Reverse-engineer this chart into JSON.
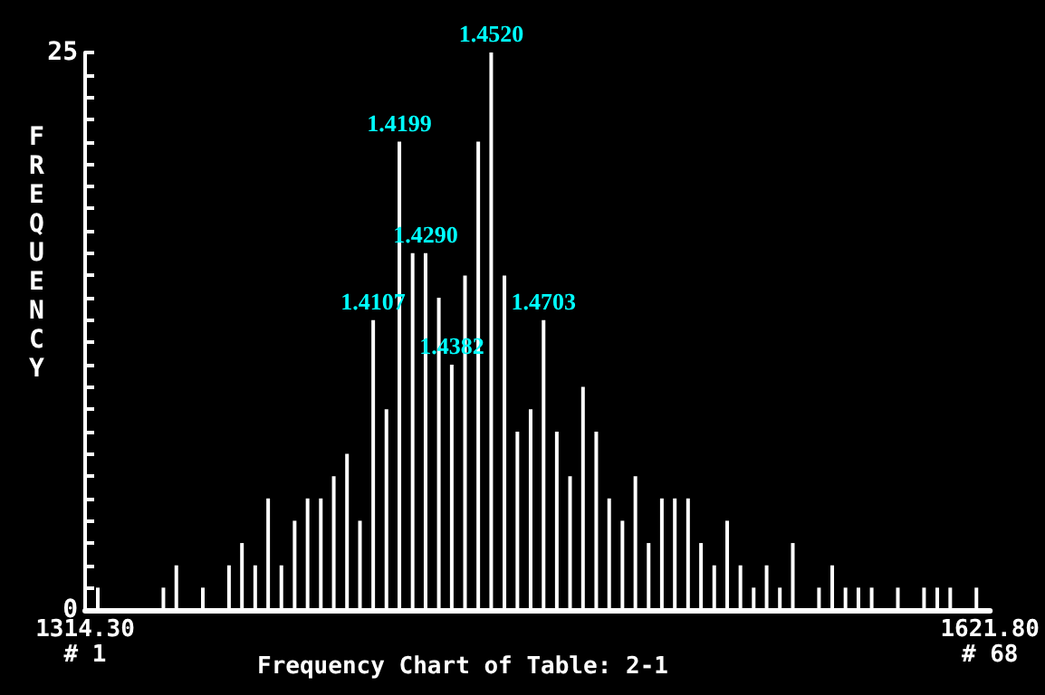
{
  "chart_data": {
    "type": "bar",
    "title": "Frequency Chart of Table: 2-1",
    "ylabel": "FREQUENCY",
    "x": [
      1318.6,
      1340.9,
      1345.3,
      1354.3,
      1363.2,
      1367.6,
      1372.1,
      1376.5,
      1381.0,
      1385.5,
      1389.9,
      1394.4,
      1398.8,
      1403.3,
      1407.7,
      1412.2,
      1416.7,
      1421.1,
      1425.6,
      1430.0,
      1434.5,
      1438.9,
      1443.4,
      1447.9,
      1452.3,
      1456.8,
      1461.2,
      1465.7,
      1470.1,
      1474.6,
      1479.1,
      1483.5,
      1488.0,
      1492.4,
      1496.9,
      1501.3,
      1505.8,
      1510.3,
      1514.7,
      1519.2,
      1523.6,
      1528.1,
      1532.5,
      1537.0,
      1541.5,
      1545.9,
      1550.4,
      1554.8,
      1563.7,
      1568.2,
      1572.7,
      1577.1,
      1581.6,
      1590.5,
      1599.4,
      1603.9,
      1608.3,
      1617.2
    ],
    "values": [
      1,
      1,
      2,
      1,
      2,
      3,
      2,
      5,
      2,
      4,
      5,
      5,
      6,
      7,
      4,
      13,
      9,
      21,
      16,
      16,
      14,
      11,
      15,
      21,
      25,
      15,
      8,
      9,
      13,
      8,
      6,
      10,
      8,
      5,
      4,
      6,
      3,
      5,
      5,
      5,
      3,
      2,
      4,
      2,
      1,
      2,
      1,
      3,
      1,
      2,
      1,
      1,
      1,
      1,
      1,
      1,
      1,
      1
    ],
    "color": "#ffffff",
    "xlim": [
      1314.3,
      1621.8
    ],
    "xticks": [
      {
        "value": 1314.3,
        "label": "1314.30"
      },
      {
        "value": 1621.8,
        "label": "1621.80"
      }
    ],
    "ylim": [
      0,
      25
    ],
    "yticks": [
      0,
      {
        "value": 1,
        "label": null
      },
      {
        "value": 2,
        "label": null
      },
      {
        "value": 3,
        "label": null
      },
      {
        "value": 4,
        "label": null
      },
      {
        "value": 5,
        "label": null
      },
      {
        "value": 6,
        "label": null
      },
      {
        "value": 7,
        "label": null
      },
      {
        "value": 8,
        "label": null
      },
      {
        "value": 9,
        "label": null
      },
      {
        "value": 10,
        "label": null
      },
      {
        "value": 11,
        "label": null
      },
      {
        "value": 12,
        "label": null
      },
      {
        "value": 13,
        "label": null
      },
      {
        "value": 14,
        "label": null
      },
      {
        "value": 15,
        "label": null
      },
      {
        "value": 16,
        "label": null
      },
      {
        "value": 17,
        "label": null
      },
      {
        "value": 18,
        "label": null
      },
      {
        "value": 19,
        "label": null
      },
      {
        "value": 20,
        "label": null
      },
      {
        "value": 21,
        "label": null
      },
      {
        "value": 22,
        "label": null
      },
      {
        "value": 23,
        "label": null
      },
      {
        "value": 24,
        "label": null
      },
      25
    ],
    "annotations": [
      "# 1",
      "# 68",
      {
        "text": "1.4107",
        "x": 1412.2,
        "y": 13
      },
      {
        "text": "1.4199",
        "x": 1421.1,
        "y": 21
      },
      {
        "text": "1.4290",
        "x": 1430.0,
        "y": 16
      },
      {
        "text": "1.4382",
        "x": 1438.9,
        "y": 11
      },
      {
        "text": "1.4520",
        "x": 1452.3,
        "y": 25
      },
      {
        "text": "1.4703",
        "x": 1470.1,
        "y": 13
      }
    ]
  }
}
